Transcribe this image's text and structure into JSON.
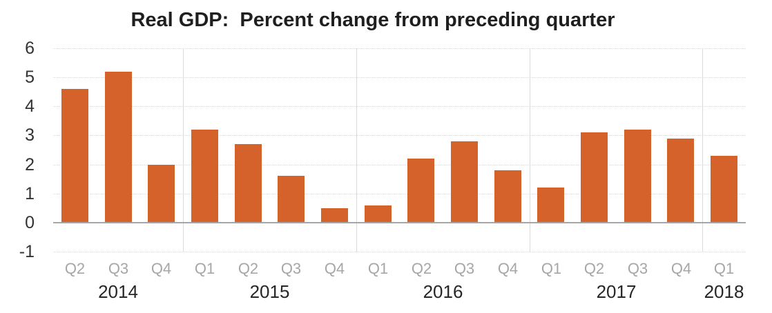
{
  "chart_data": {
    "type": "bar",
    "title": "Real GDP:  Percent change from preceding quarter",
    "quarters": [
      "Q2",
      "Q3",
      "Q4",
      "Q1",
      "Q2",
      "Q3",
      "Q4",
      "Q1",
      "Q2",
      "Q3",
      "Q4",
      "Q1",
      "Q2",
      "Q3",
      "Q4",
      "Q1"
    ],
    "values": [
      4.6,
      5.2,
      2.0,
      3.2,
      2.7,
      1.6,
      0.5,
      0.6,
      2.2,
      2.8,
      1.8,
      1.2,
      3.1,
      3.2,
      2.9,
      2.3
    ],
    "year_groups": [
      {
        "label": "2014",
        "quarters": 3
      },
      {
        "label": "2015",
        "quarters": 4
      },
      {
        "label": "2016",
        "quarters": 4
      },
      {
        "label": "2017",
        "quarters": 4
      },
      {
        "label": "2018",
        "quarters": 1
      }
    ],
    "yticks": [
      6,
      5,
      4,
      3,
      2,
      1,
      0,
      -1
    ],
    "ylim": [
      -1,
      6
    ],
    "xlabel": "",
    "ylabel": "",
    "grid": "horizontal-dotted",
    "legend": "none",
    "colors": {
      "bar": "#d5622b",
      "gridline": "#d9d9d9",
      "zero_line": "#a6a6a6",
      "year_separator": "#d9d9d9",
      "title_text": "#1f1f1f",
      "ytick_text": "#333333",
      "quarter_text": "#a6a6a6",
      "year_text": "#262626",
      "background": "#ffffff"
    }
  }
}
